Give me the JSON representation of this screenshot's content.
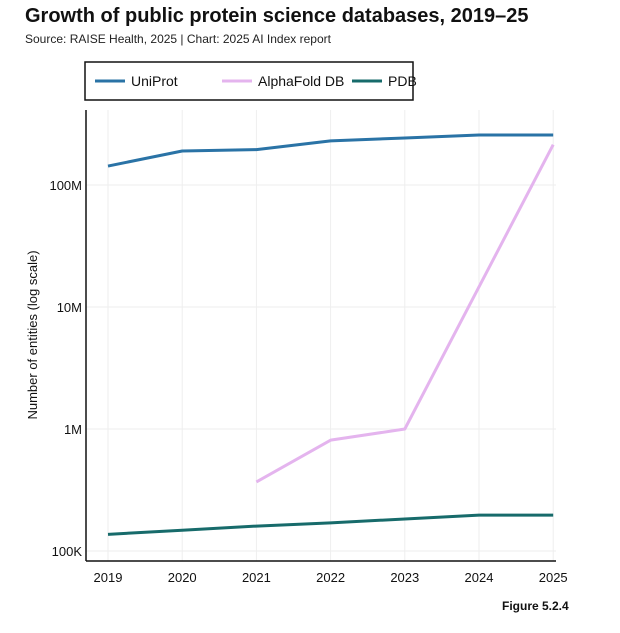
{
  "title": "Growth of public protein science databases, 2019–25",
  "subtitle": "Source: RAISE Health, 2025 | Chart: 2025 AI Index report",
  "figure_label": "Figure 5.2.4",
  "chart_data": {
    "type": "line",
    "title": "Growth of public protein science databases, 2019–25",
    "xlabel": "",
    "ylabel": "Number of entities (log scale)",
    "y_scale": "log",
    "ylim": [
      100000,
      400000000
    ],
    "x": [
      2019,
      2020,
      2021,
      2022,
      2023,
      2024,
      2025
    ],
    "x_tick_labels": [
      "2019",
      "2020",
      "2021",
      "2022",
      "2023",
      "2024",
      "2025"
    ],
    "y_ticks": [
      100000,
      1000000,
      10000000,
      100000000
    ],
    "y_tick_labels": [
      "100K",
      "1M",
      "10M",
      "100M"
    ],
    "grid": true,
    "legend_placement": "top",
    "series": [
      {
        "name": "UniProt",
        "color": "#2a73a6",
        "values": [
          143000000,
          190000000,
          195000000,
          230000000,
          243000000,
          257000000,
          257000000
        ]
      },
      {
        "name": "AlphaFold DB",
        "color": "#e4b4ee",
        "values": [
          null,
          null,
          368000,
          810000,
          1000000,
          null,
          214000000
        ]
      },
      {
        "name": "PDB",
        "color": "#176b6b",
        "values": [
          137000,
          148000,
          160000,
          170000,
          183000,
          197000,
          197000
        ]
      }
    ]
  }
}
